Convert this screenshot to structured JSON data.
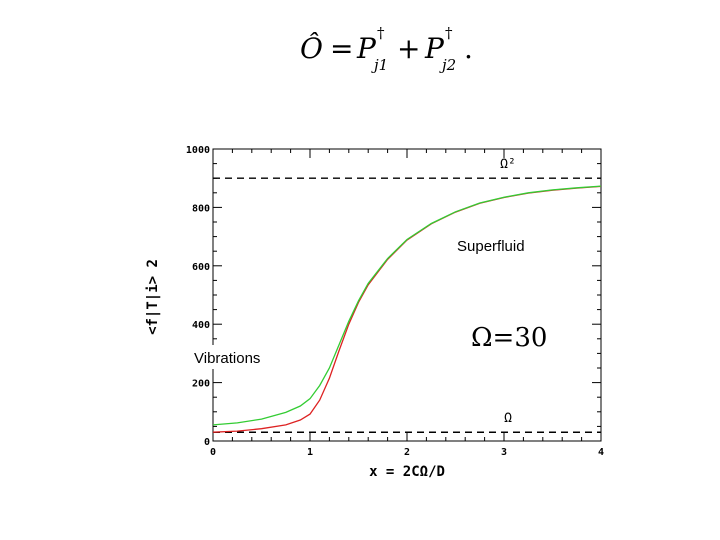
{
  "equation": {
    "lhs": "Ô",
    "equals": "=",
    "term1": "P",
    "sup1": "†",
    "sub1": "j1",
    "plus": "+",
    "term2": "P",
    "sup2": "†",
    "sub2": "j2",
    "end": "."
  },
  "chart_data": {
    "type": "line",
    "xlabel": "x = 2CΩ/D",
    "ylabel": "<f|T|i> 2",
    "xlim": [
      0,
      4
    ],
    "ylim": [
      0,
      1000
    ],
    "x_ticks": [
      "0",
      "1",
      "2",
      "3",
      "4"
    ],
    "y_ticks": [
      "0",
      "200",
      "400",
      "600",
      "800",
      "1000"
    ],
    "grid": false,
    "colors": {
      "green": "#33cc33",
      "red": "#dd2222",
      "dashed": "#000000"
    },
    "series": [
      {
        "color": "green",
        "x": [
          0,
          0.25,
          0.5,
          0.75,
          0.9,
          1.0,
          1.1,
          1.2,
          1.3,
          1.4,
          1.5,
          1.6,
          1.8,
          2.0,
          2.25,
          2.5,
          2.75,
          3.0,
          3.25,
          3.5,
          3.75,
          4.0
        ],
        "y": [
          55,
          62,
          75,
          98,
          120,
          145,
          190,
          250,
          330,
          410,
          480,
          540,
          625,
          690,
          745,
          785,
          815,
          835,
          850,
          860,
          867,
          873
        ]
      },
      {
        "color": "red",
        "x": [
          0,
          0.25,
          0.5,
          0.75,
          0.9,
          1.0,
          1.1,
          1.2,
          1.3,
          1.4,
          1.5,
          1.6,
          1.8,
          2.0,
          2.25,
          2.5,
          2.75,
          3.0,
          3.25,
          3.5,
          3.75,
          4.0
        ],
        "y": [
          30,
          34,
          42,
          55,
          72,
          92,
          140,
          215,
          310,
          400,
          475,
          535,
          622,
          688,
          744,
          784,
          814,
          834,
          849,
          859,
          866,
          872
        ]
      }
    ],
    "reference_lines": [
      {
        "y": 900,
        "label": "Ω²"
      },
      {
        "y": 30,
        "label": "Ω"
      }
    ],
    "annotations": {
      "superfluid": "Superfluid",
      "vibrations": "Vibrations",
      "omega_value": "Ω=30"
    }
  }
}
